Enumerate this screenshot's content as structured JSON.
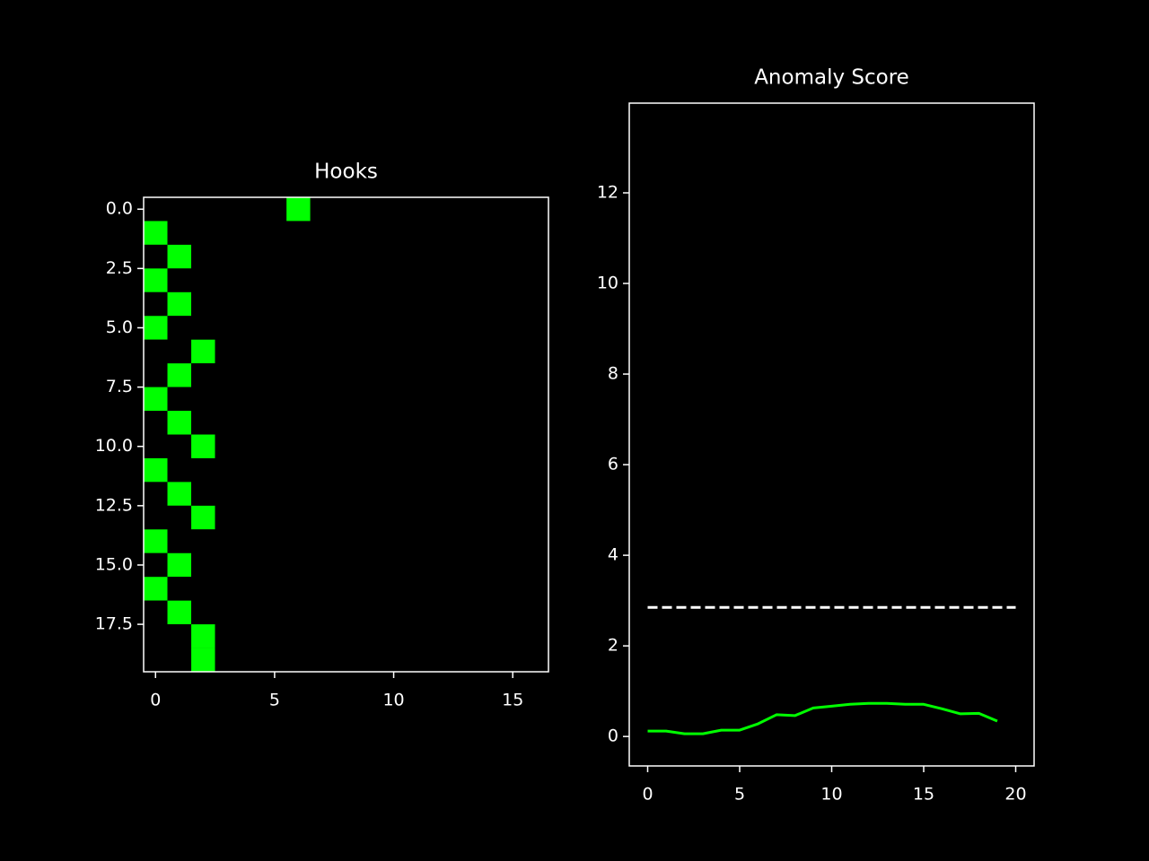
{
  "chart_data": [
    {
      "type": "heatmap",
      "title": "Hooks",
      "cmap": [
        "#000000",
        "#00ff00"
      ],
      "xlim": [
        -0.5,
        16.5
      ],
      "xticks": [
        0,
        5,
        10,
        15
      ],
      "ylim": [
        19.5,
        -0.5
      ],
      "yticks": [
        {
          "value": 0,
          "label": "0.0"
        },
        2.5,
        {
          "value": 5,
          "label": "5.0"
        },
        7.5,
        {
          "value": 10,
          "label": "10.0"
        },
        12.5,
        {
          "value": 15,
          "label": "15.0"
        },
        17.5
      ],
      "z": [
        [
          0,
          0,
          0,
          0,
          0,
          0,
          1,
          0,
          0,
          0,
          0,
          0,
          0,
          0,
          0,
          0,
          0
        ],
        [
          1,
          0,
          0,
          0,
          0,
          0,
          0,
          0,
          0,
          0,
          0,
          0,
          0,
          0,
          0,
          0,
          0
        ],
        [
          0,
          1,
          0,
          0,
          0,
          0,
          0,
          0,
          0,
          0,
          0,
          0,
          0,
          0,
          0,
          0,
          0
        ],
        [
          1,
          0,
          0,
          0,
          0,
          0,
          0,
          0,
          0,
          0,
          0,
          0,
          0,
          0,
          0,
          0,
          0
        ],
        [
          0,
          1,
          0,
          0,
          0,
          0,
          0,
          0,
          0,
          0,
          0,
          0,
          0,
          0,
          0,
          0,
          0
        ],
        [
          1,
          0,
          0,
          0,
          0,
          0,
          0,
          0,
          0,
          0,
          0,
          0,
          0,
          0,
          0,
          0,
          0
        ],
        [
          0,
          0,
          1,
          0,
          0,
          0,
          0,
          0,
          0,
          0,
          0,
          0,
          0,
          0,
          0,
          0,
          0
        ],
        [
          0,
          1,
          0,
          0,
          0,
          0,
          0,
          0,
          0,
          0,
          0,
          0,
          0,
          0,
          0,
          0,
          0
        ],
        [
          1,
          0,
          0,
          0,
          0,
          0,
          0,
          0,
          0,
          0,
          0,
          0,
          0,
          0,
          0,
          0,
          0
        ],
        [
          0,
          1,
          0,
          0,
          0,
          0,
          0,
          0,
          0,
          0,
          0,
          0,
          0,
          0,
          0,
          0,
          0
        ],
        [
          0,
          0,
          1,
          0,
          0,
          0,
          0,
          0,
          0,
          0,
          0,
          0,
          0,
          0,
          0,
          0,
          0
        ],
        [
          1,
          0,
          0,
          0,
          0,
          0,
          0,
          0,
          0,
          0,
          0,
          0,
          0,
          0,
          0,
          0,
          0
        ],
        [
          0,
          1,
          0,
          0,
          0,
          0,
          0,
          0,
          0,
          0,
          0,
          0,
          0,
          0,
          0,
          0,
          0
        ],
        [
          0,
          0,
          1,
          0,
          0,
          0,
          0,
          0,
          0,
          0,
          0,
          0,
          0,
          0,
          0,
          0,
          0
        ],
        [
          1,
          0,
          0,
          0,
          0,
          0,
          0,
          0,
          0,
          0,
          0,
          0,
          0,
          0,
          0,
          0,
          0
        ],
        [
          0,
          1,
          0,
          0,
          0,
          0,
          0,
          0,
          0,
          0,
          0,
          0,
          0,
          0,
          0,
          0,
          0
        ],
        [
          1,
          0,
          0,
          0,
          0,
          0,
          0,
          0,
          0,
          0,
          0,
          0,
          0,
          0,
          0,
          0,
          0
        ],
        [
          0,
          1,
          0,
          0,
          0,
          0,
          0,
          0,
          0,
          0,
          0,
          0,
          0,
          0,
          0,
          0,
          0
        ],
        [
          0,
          0,
          1,
          0,
          0,
          0,
          0,
          0,
          0,
          0,
          0,
          0,
          0,
          0,
          0,
          0,
          0
        ],
        [
          0,
          0,
          1,
          0,
          0,
          0,
          0,
          0,
          0,
          0,
          0,
          0,
          0,
          0,
          0,
          0,
          0
        ]
      ]
    },
    {
      "type": "line",
      "title": "Anomaly Score",
      "x": [
        0,
        1,
        2,
        3,
        4,
        5,
        6,
        7,
        8,
        9,
        10,
        11,
        12,
        13,
        14,
        15,
        16,
        17,
        18,
        19
      ],
      "series": [
        {
          "color": "#00ff00",
          "values": [
            0.12,
            0.12,
            0.06,
            0.06,
            0.14,
            0.14,
            0.28,
            0.48,
            0.46,
            0.63,
            0.67,
            0.71,
            0.73,
            0.73,
            0.71,
            0.71,
            0.61,
            0.5,
            0.51,
            0.34
          ]
        }
      ],
      "hlines": [
        {
          "y": 2.85,
          "xmin": 0,
          "xmax": 20,
          "color": "#ffffff",
          "style": "dashed"
        }
      ],
      "xlim": [
        -1,
        21
      ],
      "xticks": [
        0,
        5,
        10,
        15,
        20
      ],
      "ylim": [
        -0.65,
        13.98
      ],
      "yticks": [
        0,
        2,
        4,
        6,
        8,
        10,
        12
      ]
    }
  ]
}
